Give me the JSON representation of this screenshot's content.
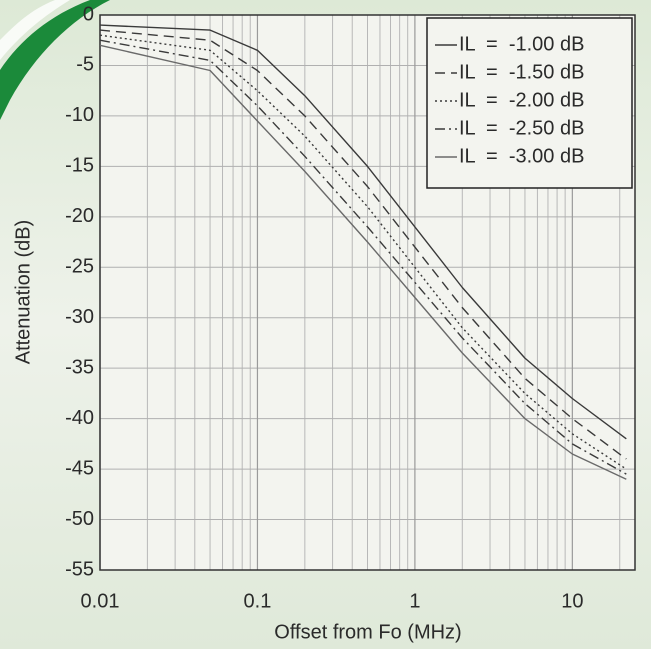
{
  "chart_data": {
    "type": "line",
    "x_label": "Offset from Fo (MHz)",
    "y_label": "Attenuation (dB)",
    "x": [
      0.01,
      0.05,
      0.1,
      0.2,
      0.5,
      1,
      2,
      5,
      10,
      22
    ],
    "series": [
      {
        "name": "IL  =  -1.00 dB",
        "color": "#3a3a3a",
        "dash": "none",
        "values": [
          -1,
          -1.5,
          -3.5,
          -8,
          -15,
          -21,
          -27,
          -34,
          -38,
          -42
        ]
      },
      {
        "name": "IL  =  -1.50 dB",
        "color": "#3a3a3a",
        "dash": "10 6",
        "values": [
          -1.5,
          -2.5,
          -5.5,
          -10,
          -17,
          -23,
          -29,
          -36,
          -40,
          -44
        ]
      },
      {
        "name": "IL  =  -2.00 dB",
        "color": "#3a3a3a",
        "dash": "2 3",
        "values": [
          -2,
          -3.5,
          -7.5,
          -12,
          -19,
          -25,
          -31,
          -37.5,
          -41.5,
          -45
        ]
      },
      {
        "name": "IL  =  -2.50 dB",
        "color": "#3a3a3a",
        "dash": "10 4 2 4",
        "values": [
          -2.5,
          -4.5,
          -9,
          -14,
          -21,
          -26.5,
          -32,
          -38.5,
          -42.5,
          -45.5
        ]
      },
      {
        "name": "IL  =  -3.00 dB",
        "color": "#6a6a6a",
        "dash": "none",
        "values": [
          -3,
          -5.5,
          -10.5,
          -15.5,
          -22.5,
          -28,
          -33.5,
          -40,
          -43.5,
          -46
        ]
      }
    ],
    "x_log": true,
    "xlim": [
      0.01,
      25
    ],
    "xticks": [
      0.01,
      0.1,
      1,
      10
    ],
    "ylim": [
      -55,
      0
    ],
    "yticks": [
      0,
      -5,
      -10,
      -15,
      -20,
      -25,
      -30,
      -35,
      -40,
      -45,
      -50,
      -55
    ],
    "grid": true,
    "minor_x_grid": true,
    "legend": "upper right"
  }
}
